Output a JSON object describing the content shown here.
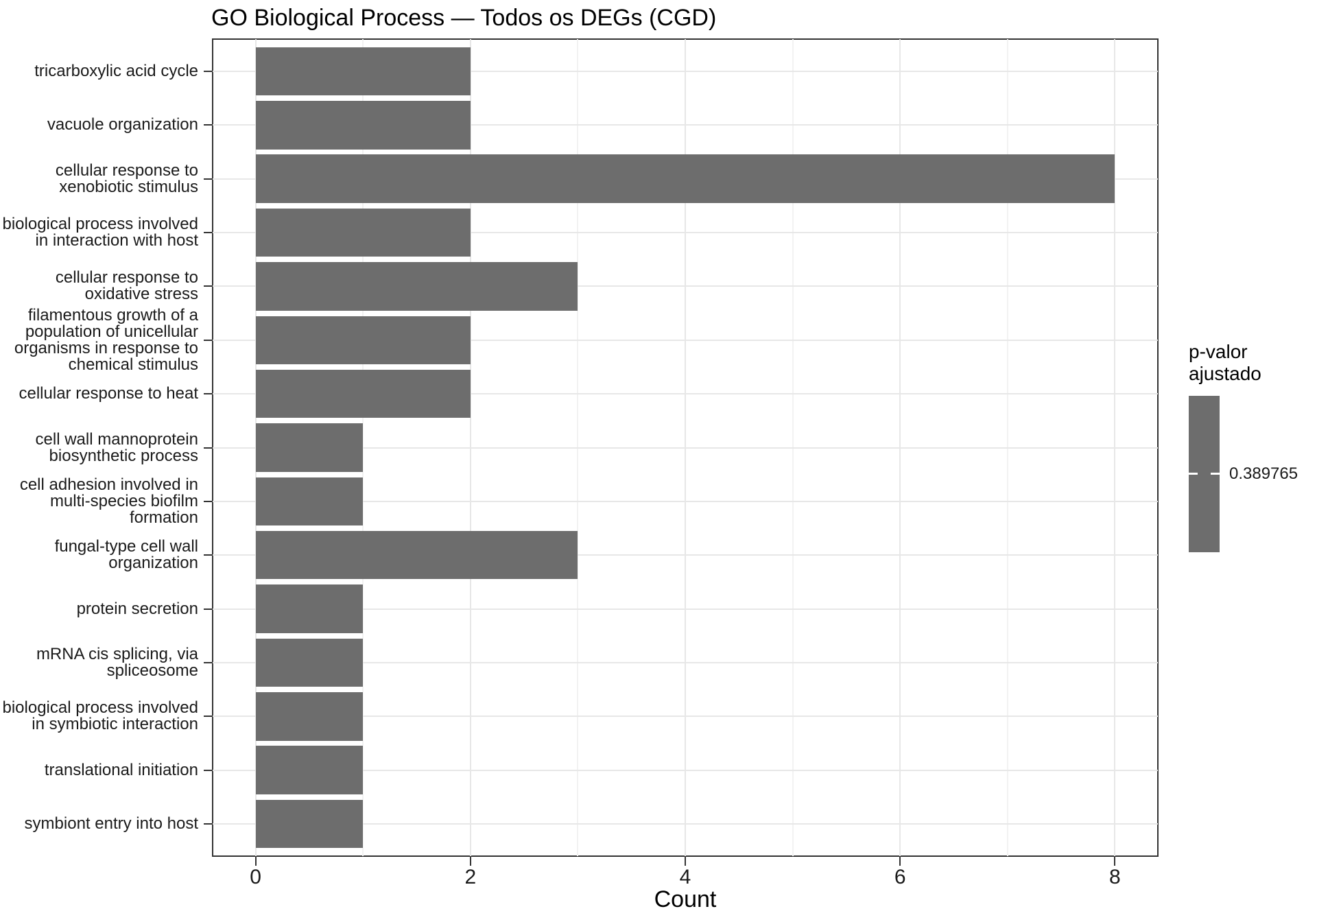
{
  "chart_data": {
    "type": "bar",
    "orientation": "horizontal",
    "title": "GO Biological Process — Todos os DEGs (CGD)",
    "xlabel": "Count",
    "ylabel": "",
    "xlim": [
      0,
      8
    ],
    "x_major_ticks": [
      0,
      2,
      4,
      6,
      8
    ],
    "x_minor_ticks": [
      1,
      3,
      5,
      7
    ],
    "grid": true,
    "legend_position": "right",
    "categories": [
      "tricarboxylic acid cycle",
      "vacuole organization",
      "cellular response to\nxenobiotic stimulus",
      "biological process involved\nin interaction with host",
      "cellular response to\noxidative stress",
      "filamentous growth of a\npopulation of unicellular\norganisms in response to\nchemical stimulus",
      "cellular response to heat",
      "cell wall mannoprotein\nbiosynthetic process",
      "cell adhesion involved in\nmulti-species biofilm\nformation",
      "fungal-type cell wall\norganization",
      "protein secretion",
      "mRNA cis splicing, via\nspliceosome",
      "biological process involved\nin symbiotic interaction",
      "translational initiation",
      "symbiont entry into host"
    ],
    "values": [
      2,
      2,
      8,
      2,
      3,
      2,
      2,
      1,
      1,
      3,
      1,
      1,
      1,
      1,
      1
    ],
    "legend": {
      "title": "p-valor\najustado",
      "tick_label": "0.389765",
      "tick_value": 0.389765
    },
    "colors": {
      "bar_fill": "#6d6d6d",
      "panel_border": "#333333",
      "grid_major": "#e7e7e7",
      "grid_minor": "#f2f2f2",
      "tick_mark": "#333333",
      "text": "#1a1a1a",
      "background": "#ffffff"
    }
  }
}
